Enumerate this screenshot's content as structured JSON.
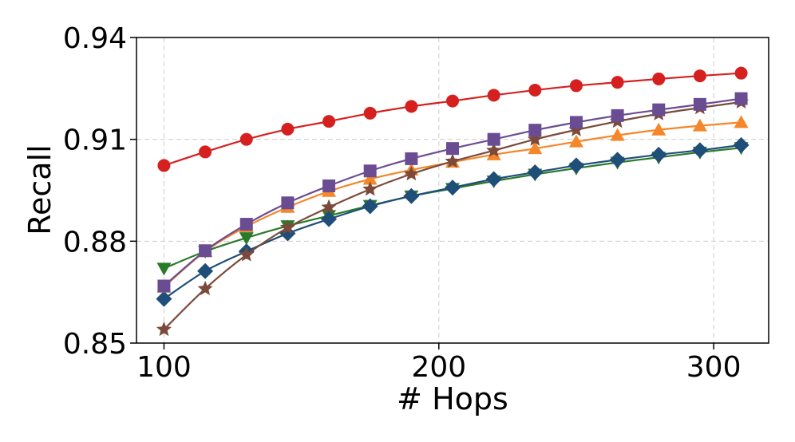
{
  "chart_data": {
    "type": "line",
    "title": "",
    "xlabel": "# Hops",
    "ylabel": "Recall",
    "xlim": [
      90,
      320
    ],
    "ylim": [
      0.85,
      0.94
    ],
    "xticks": [
      100,
      200,
      300
    ],
    "xtick_labels": [
      "100",
      "200",
      "300"
    ],
    "yticks": [
      0.85,
      0.88,
      0.91,
      0.94
    ],
    "ytick_labels": [
      "0.85",
      "0.88",
      "0.91",
      "0.94"
    ],
    "grid": true,
    "legend": "none",
    "x": [
      100,
      115,
      130,
      145,
      160,
      175,
      190,
      205,
      220,
      235,
      250,
      265,
      280,
      295,
      310
    ],
    "series": [
      {
        "color": "#d62020",
        "marker": "circle",
        "values": [
          0.9023,
          0.9063,
          0.91,
          0.913,
          0.9153,
          0.9177,
          0.9197,
          0.9213,
          0.923,
          0.9245,
          0.9258,
          0.9268,
          0.9278,
          0.9287,
          0.9295
        ]
      },
      {
        "color": "#6a4c93",
        "marker": "square",
        "values": [
          0.8668,
          0.8772,
          0.885,
          0.8913,
          0.8963,
          0.9007,
          0.9043,
          0.9073,
          0.91,
          0.9127,
          0.915,
          0.917,
          0.9187,
          0.9203,
          0.922
        ]
      },
      {
        "color": "#7b4a3a",
        "marker": "star",
        "values": [
          0.854,
          0.866,
          0.876,
          0.884,
          0.89,
          0.8953,
          0.8998,
          0.9035,
          0.9067,
          0.91,
          0.9128,
          0.9153,
          0.9175,
          0.9193,
          0.921
        ]
      },
      {
        "color": "#f5862a",
        "marker": "triangle-up",
        "values": [
          0.8665,
          0.877,
          0.8843,
          0.89,
          0.8947,
          0.8983,
          0.901,
          0.9033,
          0.9055,
          0.9073,
          0.9093,
          0.9112,
          0.9128,
          0.914,
          0.915
        ]
      },
      {
        "color": "#1f4e79",
        "marker": "diamond",
        "values": [
          0.863,
          0.8712,
          0.877,
          0.8823,
          0.8865,
          0.8903,
          0.8933,
          0.8958,
          0.8983,
          0.9003,
          0.9023,
          0.904,
          0.9055,
          0.9068,
          0.9083
        ]
      },
      {
        "color": "#2a7a2a",
        "marker": "triangle-down",
        "values": [
          0.872,
          0.877,
          0.881,
          0.8845,
          0.8875,
          0.8905,
          0.8933,
          0.8955,
          0.8977,
          0.8997,
          0.9015,
          0.9032,
          0.9047,
          0.9062,
          0.9075
        ]
      }
    ]
  }
}
